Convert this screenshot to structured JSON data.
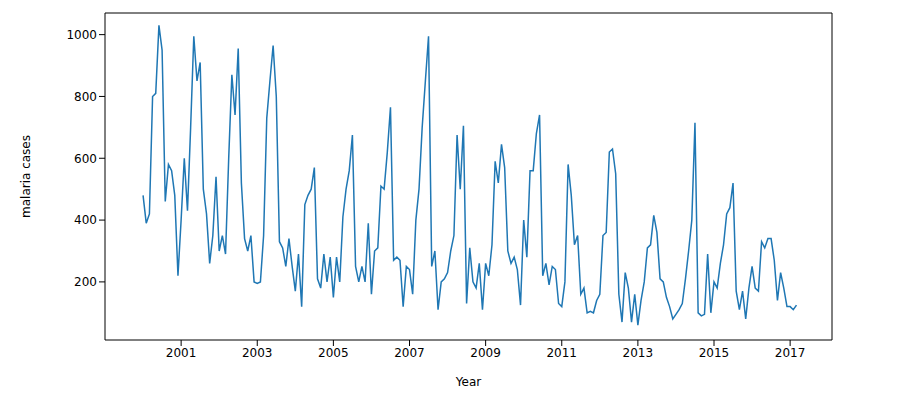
{
  "chart_data": {
    "type": "line",
    "x_label": "Year",
    "y_label": "malaria cases",
    "color": "#1f77b4",
    "xlim": [
      1999.0,
      2018.1
    ],
    "xticks": [
      2001,
      2003,
      2005,
      2007,
      2009,
      2011,
      2013,
      2015,
      2017
    ],
    "ylim": [
      12,
      1070
    ],
    "yticks": [
      200,
      400,
      600,
      800,
      1000
    ],
    "grid": false,
    "x": [
      2000,
      2000.083,
      2000.167,
      2000.25,
      2000.333,
      2000.417,
      2000.5,
      2000.583,
      2000.667,
      2000.75,
      2000.833,
      2000.917,
      2001,
      2001.083,
      2001.167,
      2001.25,
      2001.333,
      2001.417,
      2001.5,
      2001.583,
      2001.667,
      2001.75,
      2001.833,
      2001.917,
      2002,
      2002.083,
      2002.167,
      2002.25,
      2002.333,
      2002.417,
      2002.5,
      2002.583,
      2002.667,
      2002.75,
      2002.833,
      2002.917,
      2003,
      2003.083,
      2003.167,
      2003.25,
      2003.333,
      2003.417,
      2003.5,
      2003.583,
      2003.667,
      2003.75,
      2003.833,
      2003.917,
      2004,
      2004.083,
      2004.167,
      2004.25,
      2004.333,
      2004.417,
      2004.5,
      2004.583,
      2004.667,
      2004.75,
      2004.833,
      2004.917,
      2005,
      2005.083,
      2005.167,
      2005.25,
      2005.333,
      2005.417,
      2005.5,
      2005.583,
      2005.667,
      2005.75,
      2005.833,
      2005.917,
      2006,
      2006.083,
      2006.167,
      2006.25,
      2006.333,
      2006.417,
      2006.5,
      2006.583,
      2006.667,
      2006.75,
      2006.833,
      2006.917,
      2007,
      2007.083,
      2007.167,
      2007.25,
      2007.333,
      2007.417,
      2007.5,
      2007.583,
      2007.667,
      2007.75,
      2007.833,
      2007.917,
      2008,
      2008.083,
      2008.167,
      2008.25,
      2008.333,
      2008.417,
      2008.5,
      2008.583,
      2008.667,
      2008.75,
      2008.833,
      2008.917,
      2009,
      2009.083,
      2009.167,
      2009.25,
      2009.333,
      2009.417,
      2009.5,
      2009.583,
      2009.667,
      2009.75,
      2009.833,
      2009.917,
      2010,
      2010.083,
      2010.167,
      2010.25,
      2010.333,
      2010.417,
      2010.5,
      2010.583,
      2010.667,
      2010.75,
      2010.833,
      2010.917,
      2011,
      2011.083,
      2011.167,
      2011.25,
      2011.333,
      2011.417,
      2011.5,
      2011.583,
      2011.667,
      2011.75,
      2011.833,
      2011.917,
      2012,
      2012.083,
      2012.167,
      2012.25,
      2012.333,
      2012.417,
      2012.5,
      2012.583,
      2012.667,
      2012.75,
      2012.833,
      2012.917,
      2013,
      2013.083,
      2013.167,
      2013.25,
      2013.333,
      2013.417,
      2013.5,
      2013.583,
      2013.667,
      2013.75,
      2013.833,
      2013.917,
      2014,
      2014.083,
      2014.167,
      2014.25,
      2014.333,
      2014.417,
      2014.5,
      2014.583,
      2014.667,
      2014.75,
      2014.833,
      2014.917,
      2015,
      2015.083,
      2015.167,
      2015.25,
      2015.333,
      2015.417,
      2015.5,
      2015.583,
      2015.667,
      2015.75,
      2015.833,
      2015.917,
      2016,
      2016.083,
      2016.167,
      2016.25,
      2016.333,
      2016.417,
      2016.5,
      2016.583,
      2016.667,
      2016.75,
      2016.833,
      2016.917,
      2017,
      2017.083,
      2017.167
    ],
    "values": [
      480,
      390,
      420,
      800,
      810,
      1030,
      950,
      460,
      580,
      560,
      480,
      220,
      400,
      600,
      430,
      700,
      995,
      850,
      910,
      500,
      420,
      260,
      350,
      540,
      300,
      350,
      290,
      600,
      870,
      740,
      955,
      520,
      340,
      300,
      350,
      200,
      195,
      200,
      350,
      730,
      850,
      965,
      800,
      330,
      310,
      250,
      340,
      250,
      170,
      290,
      120,
      450,
      480,
      500,
      570,
      210,
      180,
      290,
      200,
      280,
      150,
      280,
      200,
      410,
      500,
      560,
      675,
      250,
      200,
      250,
      200,
      390,
      160,
      300,
      310,
      510,
      500,
      620,
      765,
      270,
      280,
      270,
      120,
      250,
      240,
      160,
      400,
      500,
      700,
      850,
      995,
      250,
      300,
      110,
      200,
      210,
      230,
      300,
      350,
      675,
      500,
      705,
      130,
      310,
      200,
      180,
      260,
      110,
      260,
      220,
      320,
      590,
      520,
      645,
      570,
      300,
      260,
      280,
      240,
      125,
      400,
      280,
      560,
      560,
      680,
      740,
      220,
      260,
      190,
      250,
      240,
      130,
      120,
      200,
      580,
      480,
      320,
      350,
      160,
      180,
      100,
      105,
      100,
      140,
      160,
      350,
      360,
      620,
      630,
      550,
      160,
      70,
      230,
      180,
      70,
      160,
      60,
      140,
      200,
      310,
      320,
      415,
      360,
      210,
      200,
      150,
      120,
      80,
      95,
      110,
      130,
      210,
      300,
      400,
      715,
      100,
      90,
      95,
      290,
      100,
      200,
      180,
      260,
      320,
      420,
      440,
      520,
      170,
      110,
      170,
      80,
      180,
      250,
      180,
      170,
      330,
      310,
      340,
      340,
      270,
      140,
      230,
      180,
      120,
      120,
      110,
      125
    ]
  }
}
